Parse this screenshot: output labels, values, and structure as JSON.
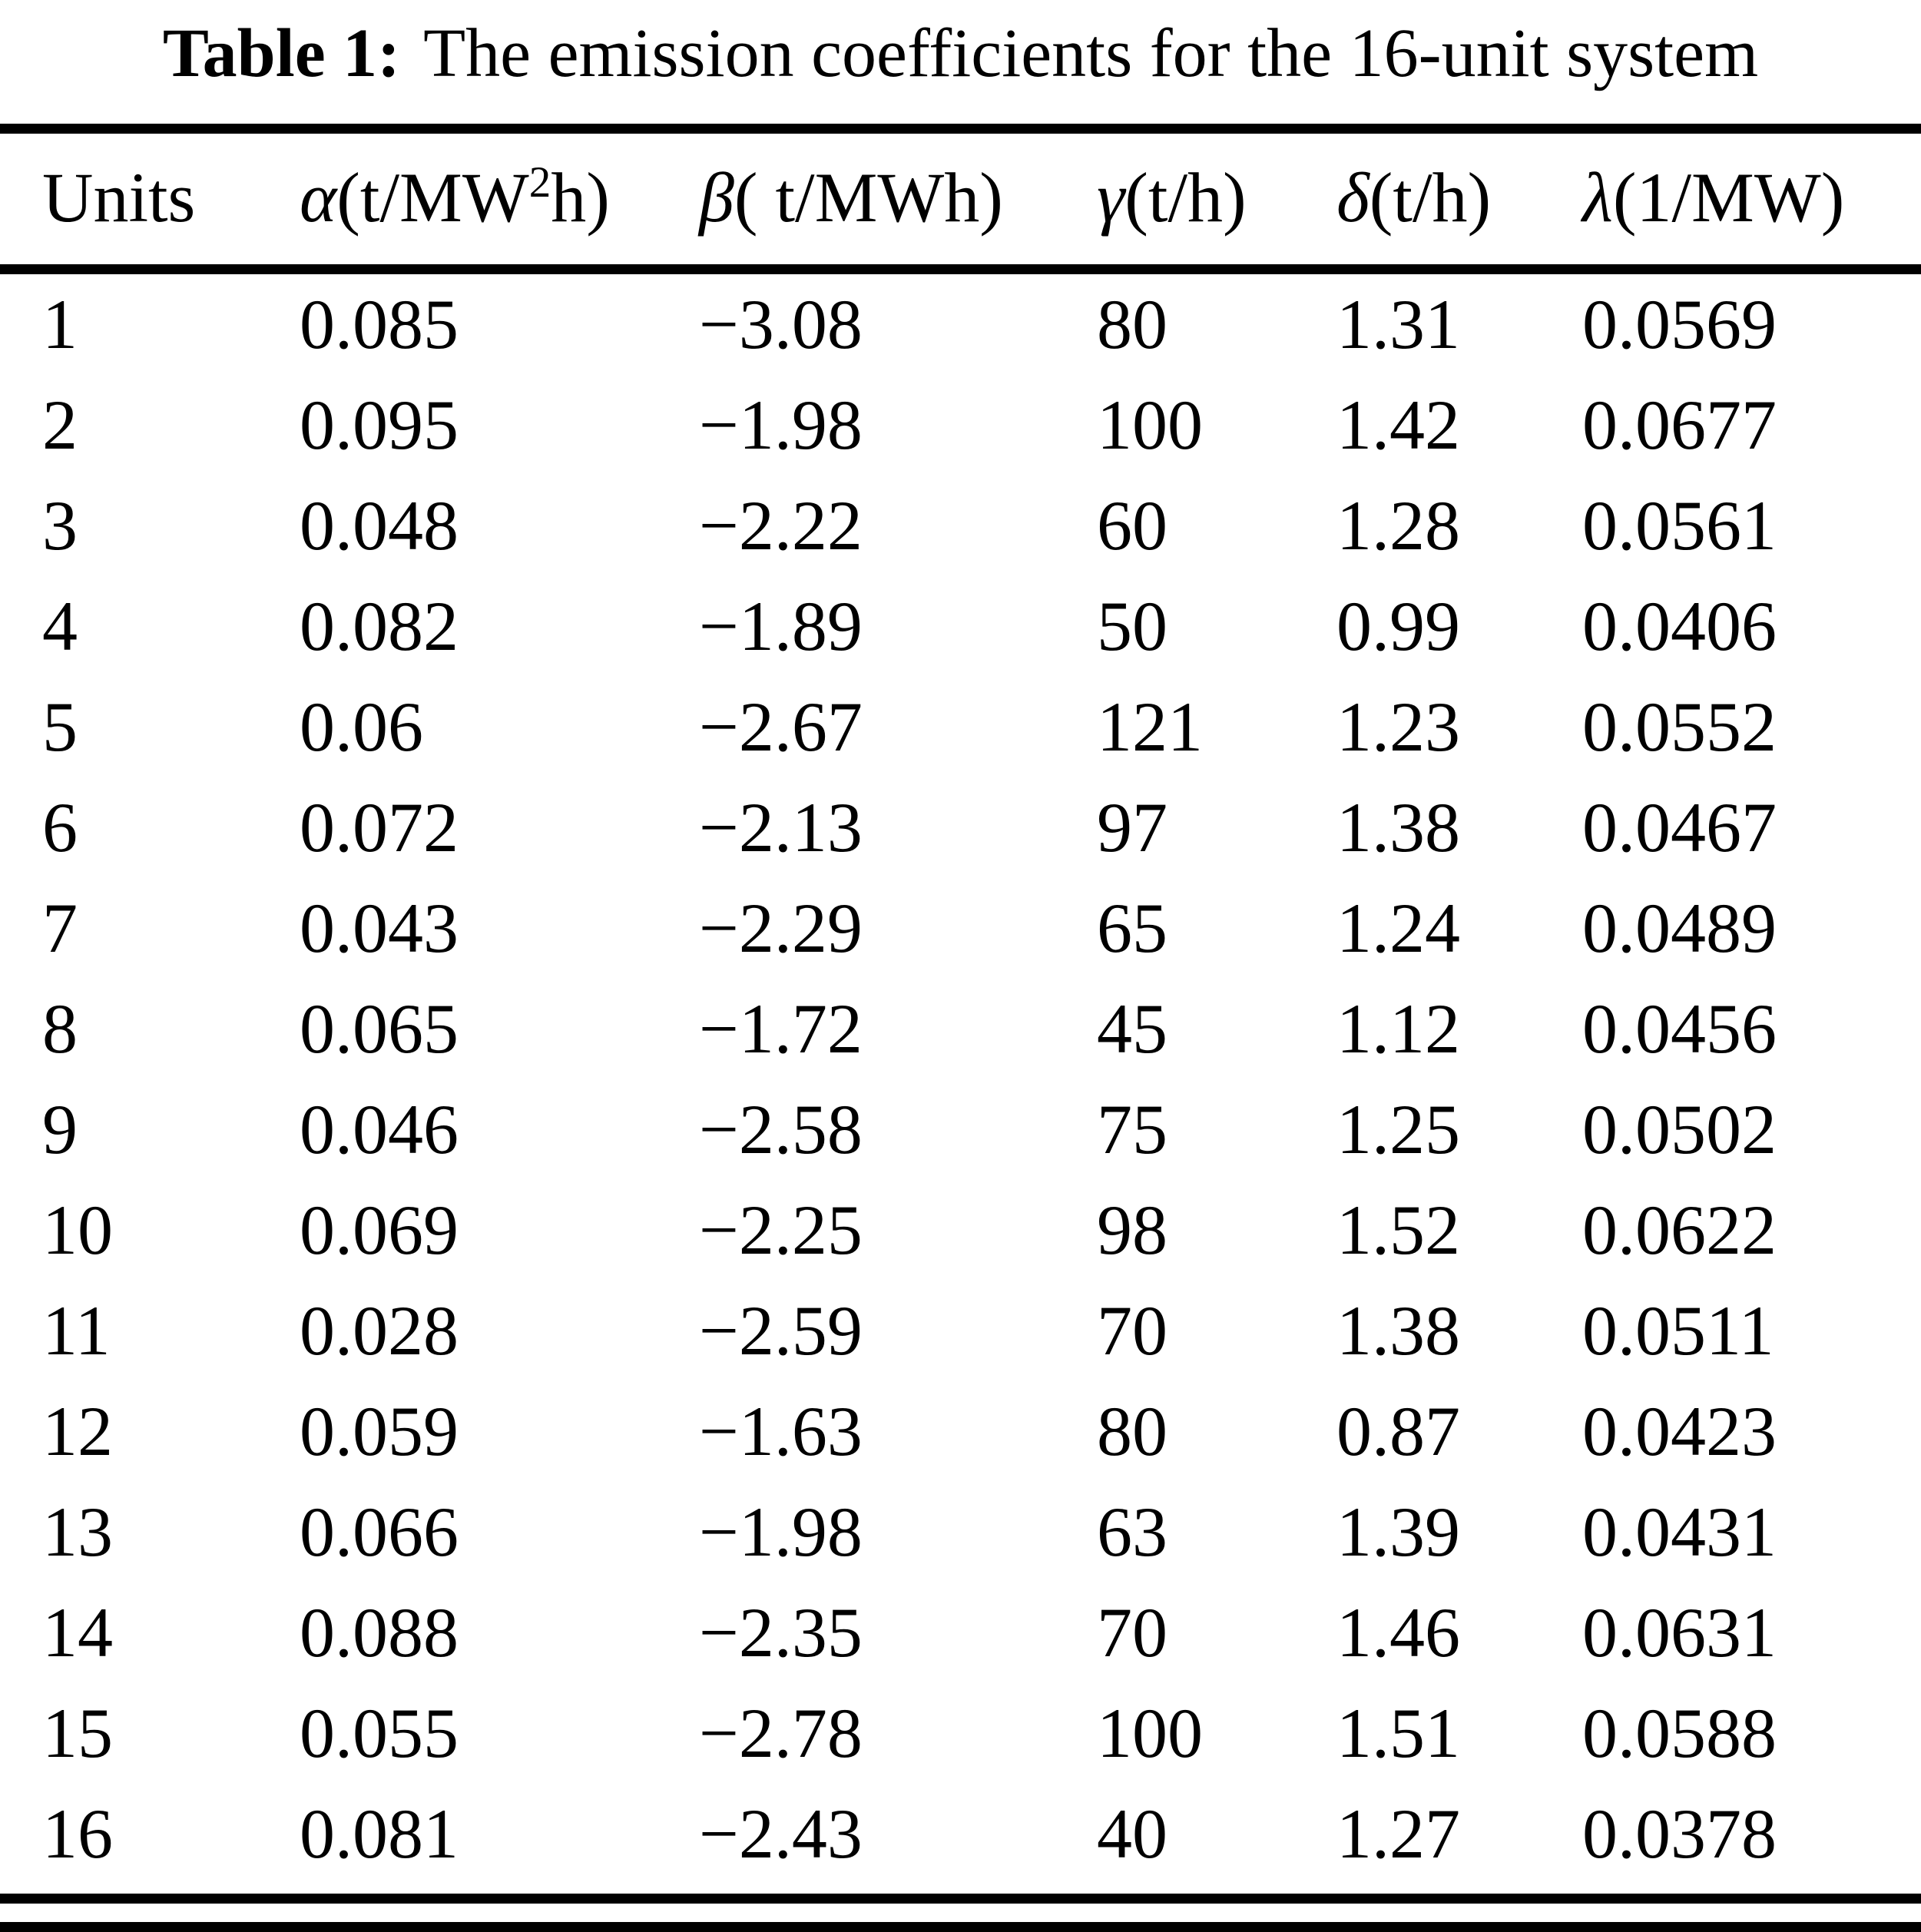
{
  "colors": {
    "text": "#000000",
    "background": "#ffffff"
  },
  "title": {
    "label": "Table 1:",
    "text": "The emission coefficients for the 16-unit system"
  },
  "table": {
    "headers": {
      "units": "Units",
      "alpha": {
        "symbol": "α",
        "unit_pre": "(t/MW",
        "unit_sup": "2",
        "unit_post": "h)"
      },
      "beta": {
        "symbol": "β",
        "unit": "( t/MWh)"
      },
      "gamma": {
        "symbol": "γ",
        "unit": "(t/h)"
      },
      "delta": {
        "symbol": "δ",
        "unit": "(t/h)"
      },
      "lambda": {
        "symbol": "λ",
        "unit": "(1/MW)"
      }
    },
    "columns": [
      "Units",
      "α(t/MW²h)",
      "β( t/MWh)",
      "γ(t/h)",
      "δ(t/h)",
      "λ(1/MW)"
    ],
    "rows": [
      [
        "1",
        "0.085",
        "−3.08",
        "80",
        "1.31",
        "0.0569"
      ],
      [
        "2",
        "0.095",
        "−1.98",
        "100",
        "1.42",
        "0.0677"
      ],
      [
        "3",
        "0.048",
        "−2.22",
        "60",
        "1.28",
        "0.0561"
      ],
      [
        "4",
        "0.082",
        "−1.89",
        "50",
        "0.99",
        "0.0406"
      ],
      [
        "5",
        "0.06",
        "−2.67",
        "121",
        "1.23",
        "0.0552"
      ],
      [
        "6",
        "0.072",
        "−2.13",
        "97",
        "1.38",
        "0.0467"
      ],
      [
        "7",
        "0.043",
        "−2.29",
        "65",
        "1.24",
        "0.0489"
      ],
      [
        "8",
        "0.065",
        "−1.72",
        "45",
        "1.12",
        "0.0456"
      ],
      [
        "9",
        "0.046",
        "−2.58",
        "75",
        "1.25",
        "0.0502"
      ],
      [
        "10",
        "0.069",
        "−2.25",
        "98",
        "1.52",
        "0.0622"
      ],
      [
        "11",
        "0.028",
        "−2.59",
        "70",
        "1.38",
        "0.0511"
      ],
      [
        "12",
        "0.059",
        "−1.63",
        "80",
        "0.87",
        "0.0423"
      ],
      [
        "13",
        "0.066",
        "−1.98",
        "63",
        "1.39",
        "0.0431"
      ],
      [
        "14",
        "0.088",
        "−2.35",
        "70",
        "1.46",
        "0.0631"
      ],
      [
        "15",
        "0.055",
        "−2.78",
        "100",
        "1.51",
        "0.0588"
      ],
      [
        "16",
        "0.081",
        "−2.43",
        "40",
        "1.27",
        "0.0378"
      ]
    ]
  }
}
